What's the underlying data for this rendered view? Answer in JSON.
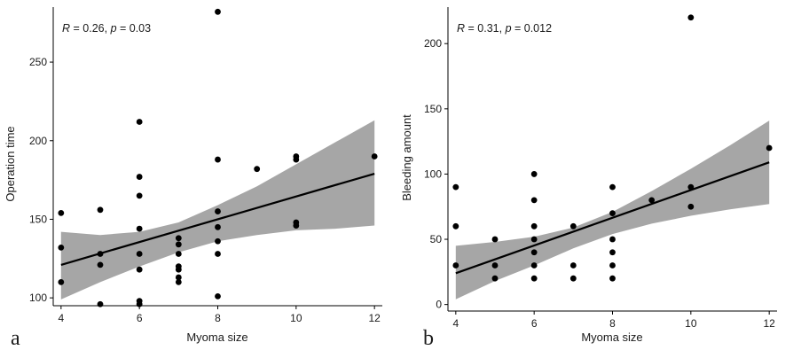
{
  "chart_data": [
    {
      "type": "scatter",
      "panel_letter": "a",
      "xlabel": "Myoma size",
      "ylabel": "Operation time",
      "annotation": {
        "r_symbol": "R",
        "r_value": " = 0.26, ",
        "p_symbol": "p",
        "p_value": " = 0.03"
      },
      "xlim": [
        3.8,
        12.2
      ],
      "ylim": [
        95,
        285
      ],
      "xticks": [
        4,
        6,
        8,
        10,
        12
      ],
      "yticks": [
        100,
        150,
        200,
        250
      ],
      "grid": false,
      "points": [
        {
          "x": 4,
          "y": 154
        },
        {
          "x": 4,
          "y": 132
        },
        {
          "x": 4,
          "y": 110
        },
        {
          "x": 5,
          "y": 156
        },
        {
          "x": 5,
          "y": 128
        },
        {
          "x": 5,
          "y": 121
        },
        {
          "x": 5,
          "y": 96
        },
        {
          "x": 6,
          "y": 212
        },
        {
          "x": 6,
          "y": 177
        },
        {
          "x": 6,
          "y": 165
        },
        {
          "x": 6,
          "y": 144
        },
        {
          "x": 6,
          "y": 128
        },
        {
          "x": 6,
          "y": 118
        },
        {
          "x": 6,
          "y": 98
        },
        {
          "x": 6,
          "y": 96
        },
        {
          "x": 7,
          "y": 138
        },
        {
          "x": 7,
          "y": 134
        },
        {
          "x": 7,
          "y": 128
        },
        {
          "x": 7,
          "y": 120
        },
        {
          "x": 7,
          "y": 118
        },
        {
          "x": 7,
          "y": 113
        },
        {
          "x": 7,
          "y": 110
        },
        {
          "x": 8,
          "y": 282
        },
        {
          "x": 8,
          "y": 188
        },
        {
          "x": 8,
          "y": 155
        },
        {
          "x": 8,
          "y": 145
        },
        {
          "x": 8,
          "y": 136
        },
        {
          "x": 8,
          "y": 128
        },
        {
          "x": 8,
          "y": 101
        },
        {
          "x": 9,
          "y": 182
        },
        {
          "x": 10,
          "y": 190
        },
        {
          "x": 10,
          "y": 188
        },
        {
          "x": 10,
          "y": 148
        },
        {
          "x": 10,
          "y": 146
        },
        {
          "x": 12,
          "y": 190
        }
      ],
      "fit_line": {
        "x": [
          4,
          12
        ],
        "y": [
          121,
          179
        ]
      },
      "confidence_band": {
        "x": [
          4,
          5,
          6,
          7,
          8,
          9,
          10,
          11,
          12
        ],
        "lower": [
          99,
          110,
          120,
          129,
          136,
          140,
          143,
          144,
          146
        ],
        "upper": [
          142,
          140,
          142,
          148,
          159,
          171,
          185,
          199,
          213
        ]
      }
    },
    {
      "type": "scatter",
      "panel_letter": "b",
      "xlabel": "Myoma size",
      "ylabel": "Bleeding amount",
      "annotation": {
        "r_symbol": "R",
        "r_value": " = 0.31, ",
        "p_symbol": "p",
        "p_value": " = 0.012"
      },
      "xlim": [
        3.8,
        12.2
      ],
      "ylim": [
        -5,
        228
      ],
      "xticks": [
        4,
        6,
        8,
        10,
        12
      ],
      "yticks": [
        0,
        50,
        100,
        150,
        200
      ],
      "grid": false,
      "points": [
        {
          "x": 4,
          "y": 90
        },
        {
          "x": 4,
          "y": 60
        },
        {
          "x": 4,
          "y": 30
        },
        {
          "x": 5,
          "y": 50
        },
        {
          "x": 5,
          "y": 30
        },
        {
          "x": 5,
          "y": 20
        },
        {
          "x": 6,
          "y": 100
        },
        {
          "x": 6,
          "y": 80
        },
        {
          "x": 6,
          "y": 60
        },
        {
          "x": 6,
          "y": 50
        },
        {
          "x": 6,
          "y": 40
        },
        {
          "x": 6,
          "y": 30
        },
        {
          "x": 6,
          "y": 20
        },
        {
          "x": 7,
          "y": 60
        },
        {
          "x": 7,
          "y": 30
        },
        {
          "x": 7,
          "y": 20
        },
        {
          "x": 8,
          "y": 90
        },
        {
          "x": 8,
          "y": 70
        },
        {
          "x": 8,
          "y": 50
        },
        {
          "x": 8,
          "y": 40
        },
        {
          "x": 8,
          "y": 30
        },
        {
          "x": 8,
          "y": 20
        },
        {
          "x": 9,
          "y": 80
        },
        {
          "x": 10,
          "y": 220
        },
        {
          "x": 10,
          "y": 90
        },
        {
          "x": 10,
          "y": 75
        },
        {
          "x": 12,
          "y": 120
        }
      ],
      "fit_line": {
        "x": [
          4,
          12
        ],
        "y": [
          24,
          109
        ]
      },
      "confidence_band": {
        "x": [
          4,
          5,
          6,
          7,
          8,
          9,
          10,
          11,
          12
        ],
        "lower": [
          4,
          18,
          30,
          43,
          54,
          62,
          68,
          73,
          77
        ],
        "upper": [
          45,
          48,
          52,
          59,
          71,
          87,
          104,
          122,
          141
        ]
      }
    }
  ],
  "colors": {
    "points": "#000000",
    "fit_line": "#000000",
    "confidence_band": "#a6a6a6",
    "axis": "#000000"
  }
}
